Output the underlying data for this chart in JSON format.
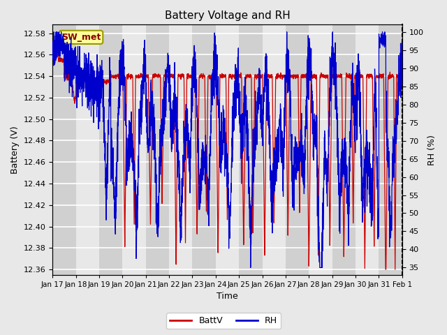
{
  "title": "Battery Voltage and RH",
  "xlabel": "Time",
  "ylabel_left": "Battery (V)",
  "ylabel_right": "RH (%)",
  "annotation": "SW_met",
  "ylim_left": [
    12.355,
    12.588
  ],
  "ylim_right": [
    33,
    102
  ],
  "yticks_left": [
    12.36,
    12.38,
    12.4,
    12.42,
    12.44,
    12.46,
    12.48,
    12.5,
    12.52,
    12.54,
    12.56,
    12.58
  ],
  "yticks_right": [
    35,
    40,
    45,
    50,
    55,
    60,
    65,
    70,
    75,
    80,
    85,
    90,
    95,
    100
  ],
  "xtick_labels": [
    "Jan 17",
    "Jan 18",
    "Jan 19",
    "Jan 20",
    "Jan 21",
    "Jan 22",
    "Jan 23",
    "Jan 24",
    "Jan 25",
    "Jan 26",
    "Jan 27",
    "Jan 28",
    "Jan 29",
    "Jan 30",
    "Jan 31",
    "Feb 1"
  ],
  "color_battv": "#cc0000",
  "color_rh": "#0000cc",
  "legend_labels": [
    "BattV",
    "RH"
  ],
  "bg_color_light": "#e8e8e8",
  "bg_color_dark": "#d0d0d0",
  "grid_color": "#ffffff",
  "fig_bg": "#e8e8e8",
  "annotation_bg": "#ffff99",
  "annotation_border": "#999900",
  "annotation_text_color": "#880000",
  "title_fontsize": 11,
  "axis_label_fontsize": 9,
  "tick_fontsize": 8,
  "legend_fontsize": 9,
  "seed": 42
}
